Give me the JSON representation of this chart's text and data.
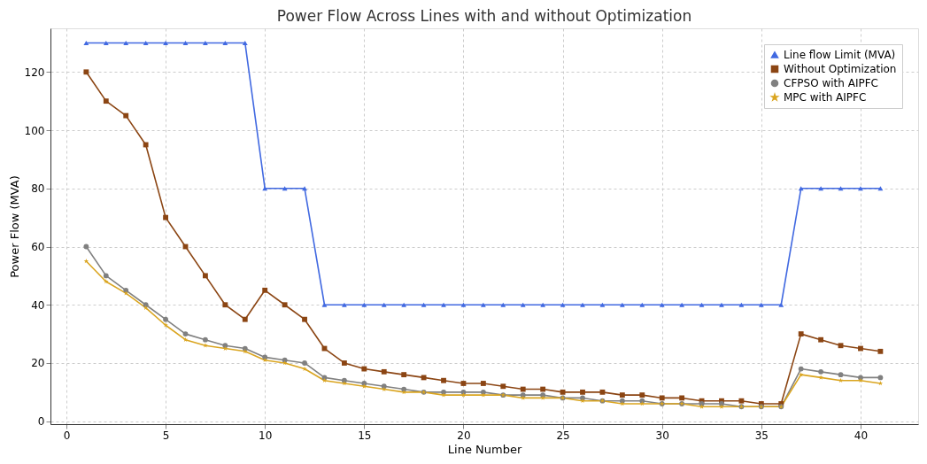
{
  "chart_data": {
    "type": "line",
    "title": "Power Flow Across Lines with and without Optimization",
    "xlabel": "Line Number",
    "ylabel": "Power Flow (MVA)",
    "x": [
      1,
      2,
      3,
      4,
      5,
      6,
      7,
      8,
      9,
      10,
      11,
      12,
      13,
      14,
      15,
      16,
      17,
      18,
      19,
      20,
      21,
      22,
      23,
      24,
      25,
      26,
      27,
      28,
      29,
      30,
      31,
      32,
      33,
      34,
      35,
      36,
      37,
      38,
      39,
      40,
      41
    ],
    "series": [
      {
        "name": "Line flow Limit (MVA)",
        "color": "#4169e1",
        "marker": "triangle",
        "values": [
          130,
          130,
          130,
          130,
          130,
          130,
          130,
          130,
          130,
          80,
          80,
          80,
          40,
          40,
          40,
          40,
          40,
          40,
          40,
          40,
          40,
          40,
          40,
          40,
          40,
          40,
          40,
          40,
          40,
          40,
          40,
          40,
          40,
          40,
          40,
          40,
          80,
          80,
          80,
          80,
          80
        ]
      },
      {
        "name": "Without Optimization",
        "color": "#8b4513",
        "marker": "square",
        "values": [
          120,
          110,
          105,
          95,
          70,
          60,
          50,
          40,
          35,
          45,
          40,
          35,
          25,
          20,
          18,
          17,
          16,
          15,
          14,
          13,
          13,
          12,
          11,
          11,
          10,
          10,
          10,
          9,
          9,
          8,
          8,
          7,
          7,
          7,
          6,
          6,
          30,
          28,
          26,
          25,
          24
        ]
      },
      {
        "name": "CFPSO with AIPFC",
        "color": "#808080",
        "marker": "circle",
        "values": [
          60,
          50,
          45,
          40,
          35,
          30,
          28,
          26,
          25,
          22,
          21,
          20,
          15,
          14,
          13,
          12,
          11,
          10,
          10,
          10,
          10,
          9,
          9,
          9,
          8,
          8,
          7,
          7,
          7,
          6,
          6,
          6,
          6,
          5,
          5,
          5,
          18,
          17,
          16,
          15,
          15
        ]
      },
      {
        "name": "MPC with AIPFC",
        "color": "#daa520",
        "marker": "star",
        "values": [
          55,
          48,
          44,
          39,
          33,
          28,
          26,
          25,
          24,
          21,
          20,
          18,
          14,
          13,
          12,
          11,
          10,
          10,
          9,
          9,
          9,
          9,
          8,
          8,
          8,
          7,
          7,
          6,
          6,
          6,
          6,
          5,
          5,
          5,
          5,
          5,
          16,
          15,
          14,
          14,
          13
        ]
      }
    ],
    "xlim": [
      -0.8,
      42.9
    ],
    "ylim": [
      -1,
      135
    ],
    "xticks": [
      0,
      5,
      10,
      15,
      20,
      25,
      30,
      35,
      40
    ],
    "yticks": [
      0,
      20,
      40,
      60,
      80,
      100,
      120
    ],
    "grid": true,
    "legend": "top right",
    "line_style": "solid"
  }
}
